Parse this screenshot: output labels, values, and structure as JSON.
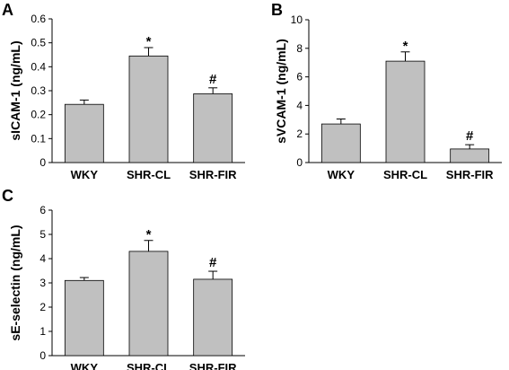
{
  "chart_data": [
    {
      "type": "bar",
      "panel_label": "A",
      "ylabel": "sICAM-1 (ng/mL)",
      "categories": [
        "WKY",
        "SHR-CL",
        "SHR-FIR"
      ],
      "values": [
        0.243,
        0.445,
        0.287
      ],
      "errors": [
        0.018,
        0.035,
        0.025
      ],
      "markers": [
        "",
        "*",
        "#"
      ],
      "ylim": [
        0,
        0.6
      ],
      "yticks": [
        "0",
        "0.1",
        "0.2",
        "0.3",
        "0.4",
        "0.5",
        "0.6"
      ],
      "bar_color": "#c0c0c0"
    },
    {
      "type": "bar",
      "panel_label": "B",
      "ylabel": "sVCAM-1 (ng/mL)",
      "categories": [
        "WKY",
        "SHR-CL",
        "SHR-FIR"
      ],
      "values": [
        2.7,
        7.1,
        0.95
      ],
      "errors": [
        0.35,
        0.65,
        0.3
      ],
      "markers": [
        "",
        "*",
        "#"
      ],
      "ylim": [
        0,
        10
      ],
      "yticks": [
        "0",
        "2",
        "4",
        "6",
        "8",
        "10"
      ],
      "bar_color": "#c0c0c0"
    },
    {
      "type": "bar",
      "panel_label": "C",
      "ylabel": "sE-selectin (ng/mL)",
      "categories": [
        "WKY",
        "SHR-CL",
        "SHR-FIR"
      ],
      "values": [
        3.1,
        4.3,
        3.15
      ],
      "errors": [
        0.12,
        0.45,
        0.33
      ],
      "markers": [
        "",
        "*",
        "#"
      ],
      "ylim": [
        0,
        6
      ],
      "yticks": [
        "0",
        "1",
        "2",
        "3",
        "4",
        "5",
        "6"
      ],
      "bar_color": "#c0c0c0"
    }
  ]
}
